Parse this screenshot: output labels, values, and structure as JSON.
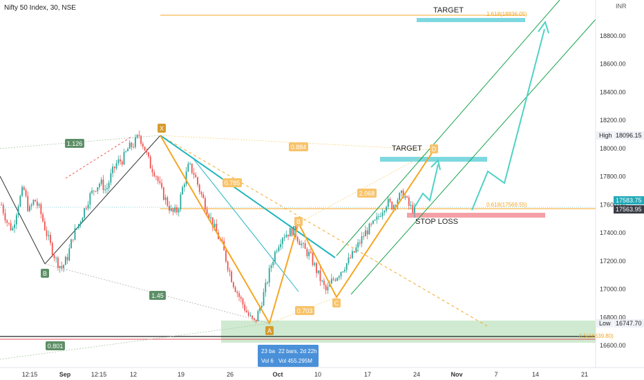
{
  "header": {
    "symbol": "Nifty 50 Index, 30, NSE",
    "currency": "INR"
  },
  "colors": {
    "candle_up": "#26a69a",
    "candle_down": "#ef5350",
    "pattern_orange": "#f5a623",
    "pattern_teal": "#22b5bf",
    "channel_green": "#17a34a",
    "target_zone": "#7dd8e0",
    "stop_zone": "#f4a0a6",
    "demand_zone": "#bfe3c0",
    "label_green": "#5d8f66",
    "price_line": "#1ea7b5"
  },
  "annotations": {
    "target_top": "TARGET",
    "target_mid": "TARGET",
    "stop_loss": "STOP LOSS",
    "fib_1618": "1.618(18836.05)",
    "fib_0618": "0.618(17569.55)",
    "fib_05": "0.5(16639.80)",
    "ratio_1126": "1.126",
    "ratio_145": "1.45",
    "ratio_0801": "0.801",
    "ratio_0884": "0.884",
    "ratio_0785": "0.785",
    "ratio_2068": "2.068",
    "ratio_0703": "0.703"
  },
  "points": {
    "X": "X",
    "A": "A",
    "B": "B",
    "B2": "B",
    "C": "C",
    "D": "D"
  },
  "tooltip": {
    "line1a": "23 ba",
    "line1b": "22 bars, 2d 22h",
    "line2a": "Vol 6",
    "line2b": "Vol 455.295M"
  },
  "chart_data": {
    "type": "candlestick",
    "title": "Nifty 50 Index, 30, NSE",
    "y_unit": "INR",
    "ylim": [
      16520,
      19100
    ],
    "y_ticks": [
      16600,
      16800,
      17000,
      17200,
      17400,
      17600,
      17800,
      18000,
      18200,
      18400,
      18600,
      18800
    ],
    "y_tick_labels": [
      "16600.00",
      "16800.00",
      "17000.00",
      "17200.00",
      "17400.00",
      "17600.00",
      "17800.00",
      "18000.00",
      "18200.00",
      "18400.00",
      "18600.00",
      "18800.00"
    ],
    "x_tick_labels": [
      "12:15",
      "Sep",
      "12:15",
      "12",
      "19",
      "26",
      "Oct",
      "10",
      "17",
      "24",
      "Nov",
      "7",
      "14",
      "21"
    ],
    "price_labels": [
      {
        "name": "High",
        "value": 18096.15,
        "text": "18096.15"
      },
      {
        "name": "last_cyan",
        "value": 17583.75,
        "text": "17583.75"
      },
      {
        "name": "last_dark",
        "value": 17563.95,
        "text": "17563.95"
      },
      {
        "name": "Low",
        "value": 16747.7,
        "text": "16747.70"
      }
    ],
    "xabcd_pattern": [
      {
        "point": "X",
        "price": 18096.15
      },
      {
        "point": "A",
        "price": 16747.7
      },
      {
        "point": "B",
        "price": 17430
      },
      {
        "point": "C",
        "price": 16960
      },
      {
        "point": "D",
        "price": 17900
      }
    ],
    "fib_levels": [
      {
        "ratio": 1.618,
        "price": 18836.05
      },
      {
        "ratio": 0.618,
        "price": 17569.55
      },
      {
        "ratio": 0.5,
        "price": 16639.8
      }
    ],
    "close_path": [
      17600,
      17480,
      17420,
      17600,
      17720,
      17550,
      17640,
      17560,
      17420,
      17300,
      17200,
      17150,
      17230,
      17380,
      17460,
      17560,
      17660,
      17720,
      17760,
      17700,
      17820,
      17900,
      17920,
      18000,
      18030,
      18096,
      18000,
      17880,
      17820,
      17700,
      17620,
      17540,
      17560,
      17740,
      17880,
      17820,
      17700,
      17600,
      17500,
      17400,
      17320,
      17180,
      17050,
      16960,
      16880,
      16800,
      16760,
      16880,
      17020,
      17180,
      17300,
      17380,
      17400,
      17420,
      17350,
      17280,
      17240,
      17150,
      17060,
      16980,
      17060,
      17100,
      17150,
      17200,
      17260,
      17330,
      17400,
      17440,
      17480,
      17560,
      17620,
      17590,
      17650,
      17680,
      17590,
      17560
    ]
  }
}
